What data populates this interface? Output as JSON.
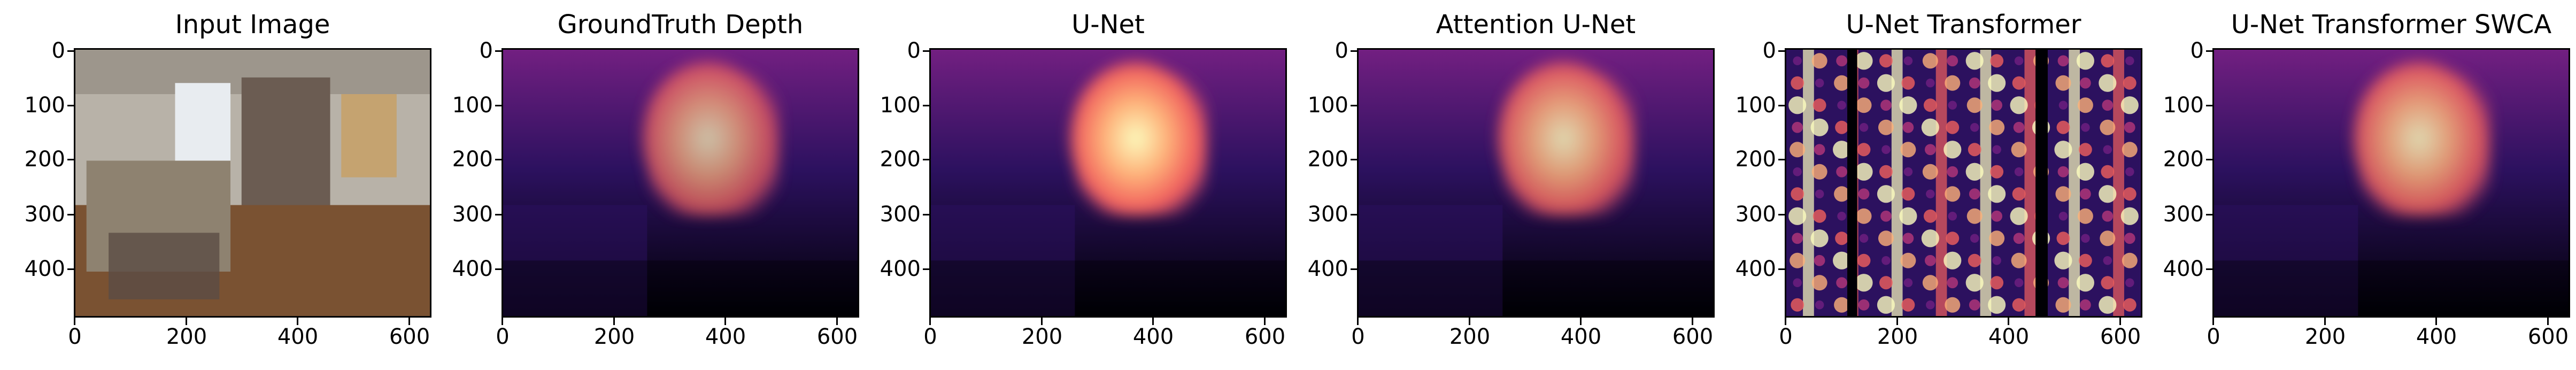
{
  "panels": [
    {
      "title": "Input Image",
      "kind": "rgb"
    },
    {
      "title": "GroundTruth Depth",
      "kind": "depth_gt"
    },
    {
      "title": "U-Net",
      "kind": "depth_unet"
    },
    {
      "title": "Attention U-Net",
      "kind": "depth_att"
    },
    {
      "title": "U-Net Transformer",
      "kind": "noise"
    },
    {
      "title": "U-Net Transformer SWCA",
      "kind": "depth_swca"
    }
  ],
  "axes": {
    "y_ticks": [
      "0",
      "100",
      "200",
      "300",
      "400"
    ],
    "x_ticks": [
      "0",
      "200",
      "400",
      "600"
    ]
  },
  "colormap": [
    "#000004",
    "#2c115f",
    "#721f81",
    "#b73779",
    "#f1605d",
    "#feb078",
    "#fcfdbf"
  ]
}
